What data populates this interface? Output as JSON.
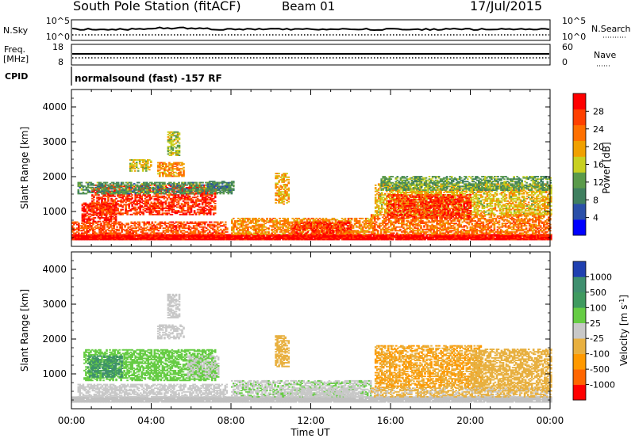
{
  "header": {
    "station": "South Pole Station (fitACF)",
    "beam": "Beam 01",
    "date": "17/Jul/2015"
  },
  "ancillary": {
    "nsky_label": "N.Sky",
    "nsky_top_tick": "10^5",
    "nsky_bottom_tick": "10^0",
    "nsearch_label": "N.Search",
    "nsearch_top_tick": "10^5",
    "nsearch_bottom_tick": "10^0",
    "freq_label_top": "Freq.",
    "freq_label_bottom": "[MHz]",
    "freq_top_tick": "18",
    "freq_bottom_tick": "8",
    "nave_label": "Nave",
    "nave_top_tick": "60",
    "nave_bottom_tick": "0",
    "cpid_label": "CPID",
    "cpid_text": "normalsound (fast) -157 RF"
  },
  "colors": {
    "power_scale": [
      "#0000ff",
      "#2a4fa8",
      "#3f7f5f",
      "#5a9a4a",
      "#c8d020",
      "#f0a000",
      "#ff7000",
      "#ff4000",
      "#ff0000"
    ],
    "velocity_scale": [
      "#ff0000",
      "#ff6600",
      "#ff9900",
      "#e8b040",
      "#c8c8c8",
      "#66cc44",
      "#3f9a5f",
      "#3f8f6f",
      "#2040b0"
    ],
    "ground_scatter": "#c0c0c0"
  },
  "chart_data": [
    {
      "type": "heatmap",
      "panel": "power",
      "xlabel": "Time UT",
      "ylabel": "Slant Range [km]",
      "x_ticks": [
        "00:00",
        "04:00",
        "08:00",
        "12:00",
        "16:00",
        "20:00",
        "00:00"
      ],
      "x_hours": [
        0,
        4,
        8,
        12,
        16,
        20,
        24
      ],
      "xlim": [
        0,
        24
      ],
      "ylim": [
        0,
        4500
      ],
      "y_ticks": [
        1000,
        2000,
        3000,
        4000
      ],
      "colorbar": {
        "label": "Power [dB]",
        "ticks": [
          "4",
          "8",
          "12",
          "16",
          "20",
          "24",
          "28"
        ],
        "range": [
          0,
          30
        ]
      },
      "regions": [
        {
          "t0": 0.0,
          "t1": 24.0,
          "r0": 180,
          "r1": 330,
          "v": 29
        },
        {
          "t0": 0.0,
          "t1": 7.8,
          "r0": 330,
          "r1": 700,
          "v": 24
        },
        {
          "t0": 0.5,
          "t1": 2.2,
          "r0": 700,
          "r1": 1250,
          "v": 27
        },
        {
          "t0": 1.0,
          "t1": 7.2,
          "r0": 900,
          "r1": 1750,
          "v": 26
        },
        {
          "t0": 0.3,
          "t1": 8.0,
          "r0": 1500,
          "r1": 1850,
          "v": 10
        },
        {
          "t0": 4.3,
          "t1": 5.6,
          "r0": 2000,
          "r1": 2400,
          "v": 20
        },
        {
          "t0": 4.8,
          "t1": 5.4,
          "r0": 2600,
          "r1": 3300,
          "v": 14
        },
        {
          "t0": 2.9,
          "t1": 4.0,
          "r0": 2150,
          "r1": 2500,
          "v": 16
        },
        {
          "t0": 6.8,
          "t1": 8.1,
          "r0": 1600,
          "r1": 1850,
          "v": 9
        },
        {
          "t0": 8.0,
          "t1": 15.0,
          "r0": 330,
          "r1": 800,
          "v": 20
        },
        {
          "t0": 11.0,
          "t1": 14.0,
          "r0": 330,
          "r1": 700,
          "v": 26
        },
        {
          "t0": 10.2,
          "t1": 10.9,
          "r0": 1200,
          "r1": 2100,
          "v": 18
        },
        {
          "t0": 15.0,
          "t1": 24.0,
          "r0": 330,
          "r1": 900,
          "v": 22
        },
        {
          "t0": 15.2,
          "t1": 24.0,
          "r0": 900,
          "r1": 1800,
          "v": 17
        },
        {
          "t0": 15.8,
          "t1": 20.0,
          "r0": 800,
          "r1": 1500,
          "v": 26
        },
        {
          "t0": 15.5,
          "t1": 24.0,
          "r0": 1600,
          "r1": 2000,
          "v": 11
        }
      ]
    },
    {
      "type": "heatmap",
      "panel": "velocity",
      "xlabel": "Time UT",
      "ylabel": "Slant Range [km]",
      "x_ticks": [
        "00:00",
        "04:00",
        "08:00",
        "12:00",
        "16:00",
        "20:00",
        "00:00"
      ],
      "x_hours": [
        0,
        4,
        8,
        12,
        16,
        20,
        24
      ],
      "xlim": [
        0,
        24
      ],
      "ylim": [
        0,
        4500
      ],
      "y_ticks": [
        1000,
        2000,
        3000,
        4000
      ],
      "colorbar": {
        "label": "Velocity [m s-1]",
        "ticks": [
          "-1000",
          "-500",
          "-100",
          "-25",
          "25",
          "100",
          "500",
          "1000"
        ],
        "range": [
          -1200,
          1200
        ]
      },
      "regions": [
        {
          "t0": 0.0,
          "t1": 24.0,
          "r0": 180,
          "r1": 330,
          "v": 0,
          "ground": true
        },
        {
          "t0": 0.3,
          "t1": 7.8,
          "r0": 330,
          "r1": 700,
          "v": 90
        },
        {
          "t0": 0.6,
          "t1": 7.2,
          "r0": 800,
          "r1": 1700,
          "v": 250
        },
        {
          "t0": 0.8,
          "t1": 2.5,
          "r0": 900,
          "r1": 1500,
          "v": 700
        },
        {
          "t0": 5.8,
          "t1": 7.4,
          "r0": 900,
          "r1": 1500,
          "v": 120
        },
        {
          "t0": 4.3,
          "t1": 5.6,
          "r0": 2000,
          "r1": 2400,
          "v": -40
        },
        {
          "t0": 4.8,
          "t1": 5.4,
          "r0": 2600,
          "r1": 3300,
          "v": 0
        },
        {
          "t0": 10.2,
          "t1": 10.9,
          "r0": 1200,
          "r1": 2100,
          "v": -200
        },
        {
          "t0": 8.0,
          "t1": 15.0,
          "r0": 330,
          "r1": 800,
          "v": 120
        },
        {
          "t0": 11.0,
          "t1": 14.5,
          "r0": 330,
          "r1": 600,
          "v": 80
        },
        {
          "t0": 15.2,
          "t1": 20.5,
          "r0": 600,
          "r1": 1800,
          "v": -400
        },
        {
          "t0": 20.0,
          "t1": 24.0,
          "r0": 500,
          "r1": 1700,
          "v": -250
        },
        {
          "t0": 15.0,
          "t1": 24.0,
          "r0": 330,
          "r1": 600,
          "v": -150
        }
      ]
    }
  ]
}
